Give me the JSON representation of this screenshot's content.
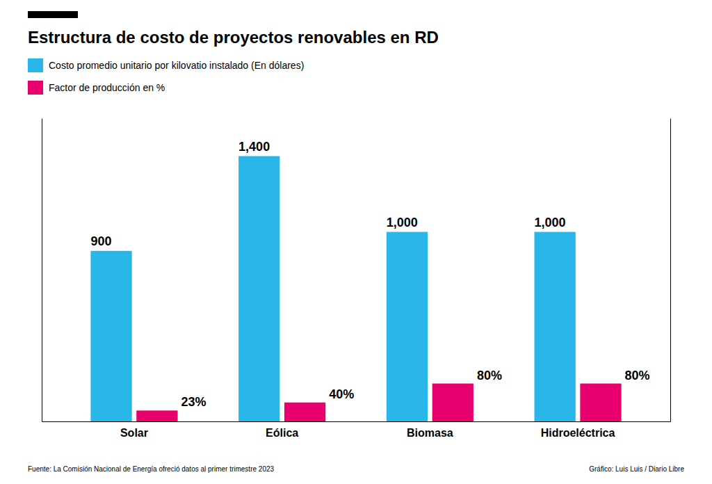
{
  "chart_data": {
    "type": "bar",
    "title": "Estructura de costo de proyectos renovables en RD",
    "categories": [
      "Solar",
      "Eólica",
      "Biomasa",
      "Hidroeléctrica"
    ],
    "series": [
      {
        "name": "Costo promedio unitario por kilovatio instalado  (En dólares)",
        "color": "#29B6E8",
        "values": [
          900,
          1400,
          1000,
          1000
        ],
        "value_labels": [
          "900",
          "1,400",
          "1,000",
          "1,000"
        ]
      },
      {
        "name": "Factor de producción en %",
        "color": "#E8006E",
        "axis": "y2",
        "values": [
          23,
          40,
          80,
          80
        ],
        "value_labels": [
          "23%",
          "40%",
          "80%",
          "80%"
        ]
      }
    ],
    "ylim": [
      0,
      1600
    ],
    "y2lim": [
      0,
      640
    ],
    "data_labels": true,
    "tick_labels": "x",
    "grid": false,
    "legend": "upper left",
    "annotations": [
      "Fuente: La Comisión Nacional de Energía ofreció datos al primer trimestre 2023",
      "Gráfico: Luis Luis / Diario Libre"
    ]
  }
}
